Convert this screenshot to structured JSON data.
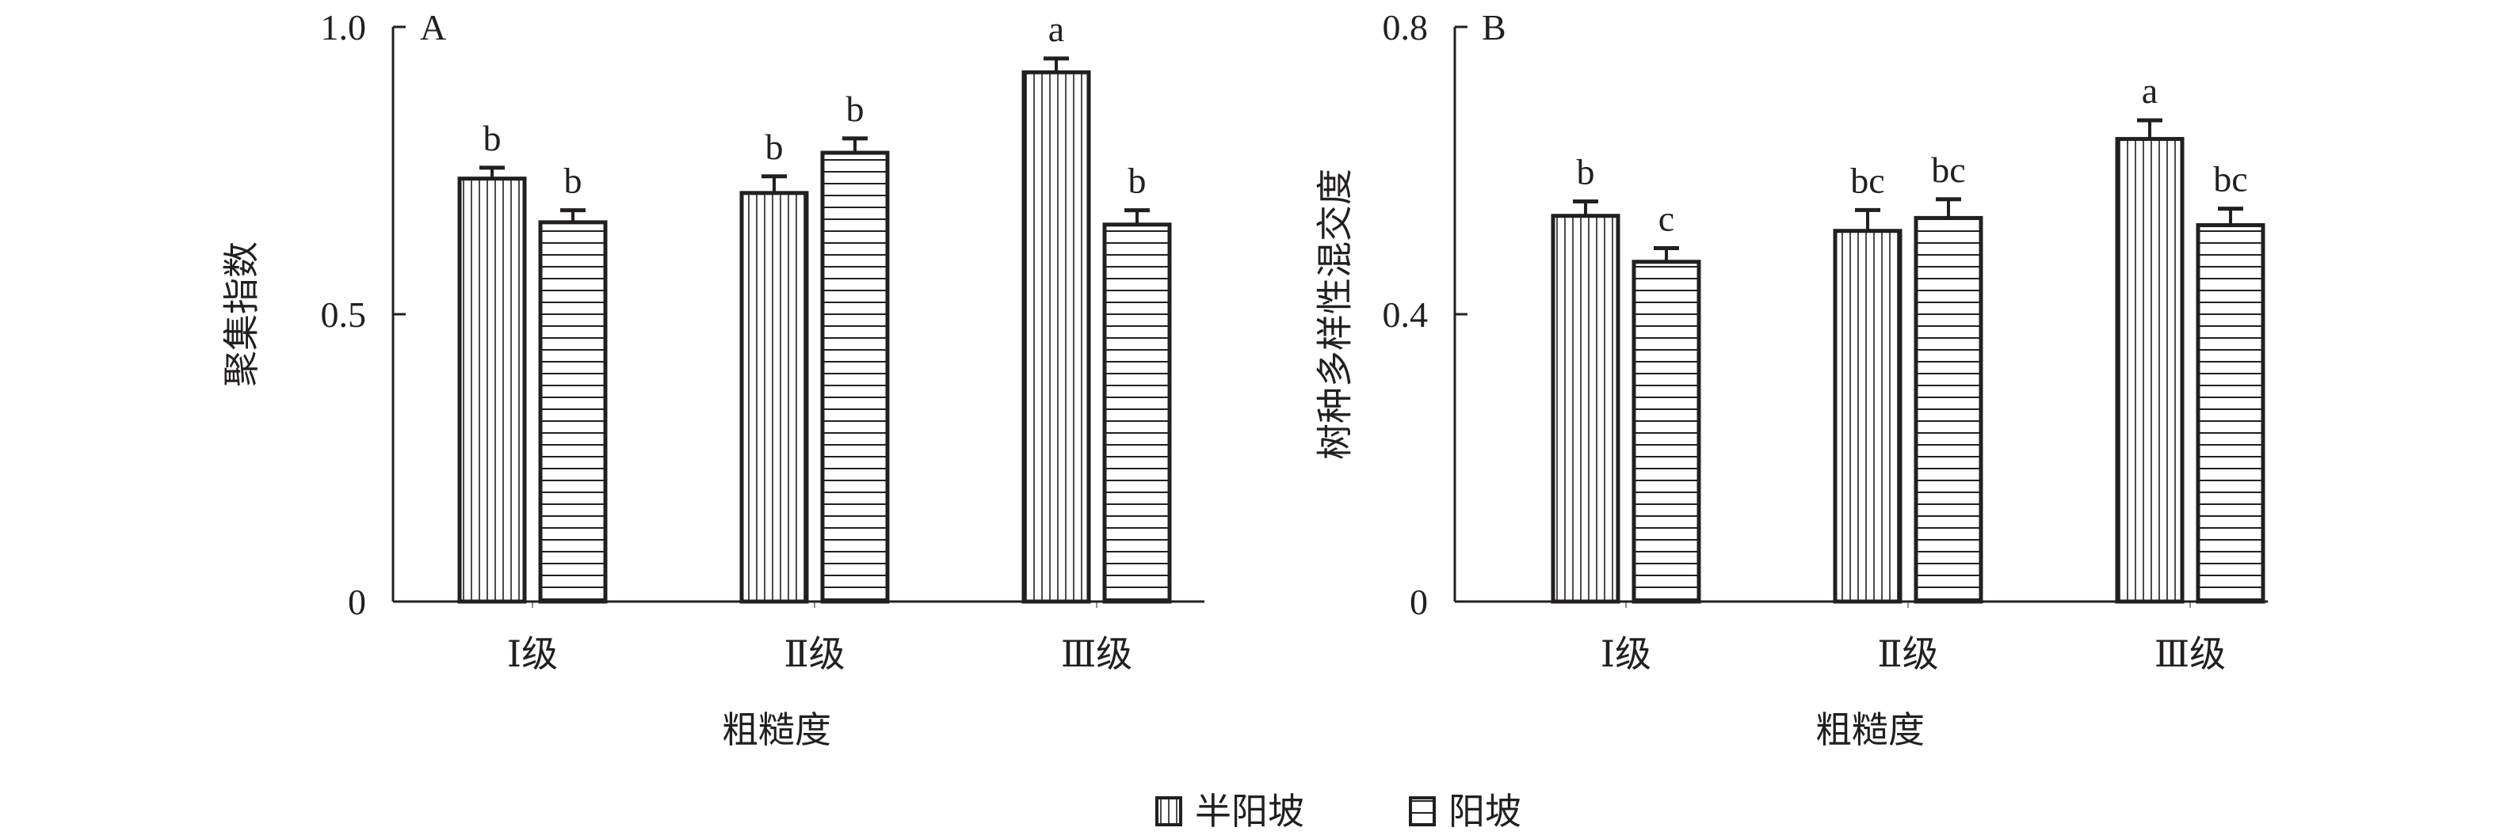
{
  "chart_data": [
    {
      "type": "bar",
      "panel_label": "A",
      "xlabel": "粗糙度",
      "ylabel": "聚集指数",
      "categories": [
        "Ⅰ级",
        "Ⅱ级",
        "Ⅲ级"
      ],
      "ylim": [
        0,
        1.0
      ],
      "yticks": [
        "0",
        "0.5",
        "1.0"
      ],
      "ytick_values": [
        0,
        0.5,
        1.0
      ],
      "series": [
        {
          "name": "半阳坡",
          "pattern": "vertical",
          "values": [
            0.736,
            0.711,
            0.921
          ],
          "error": [
            0.019,
            0.029,
            0.024
          ],
          "letters": [
            "b",
            "b",
            "a"
          ]
        },
        {
          "name": "阳坡",
          "pattern": "horizontal",
          "values": [
            0.66,
            0.781,
            0.656
          ],
          "error": [
            0.021,
            0.025,
            0.025
          ],
          "letters": [
            "b",
            "b",
            "b"
          ]
        }
      ]
    },
    {
      "type": "bar",
      "panel_label": "B",
      "xlabel": "粗糙度",
      "ylabel": "树种多样性混交度",
      "categories": [
        "Ⅰ级",
        "Ⅱ级",
        "Ⅲ级"
      ],
      "ylim": [
        0,
        0.8
      ],
      "yticks": [
        "0",
        "0.4",
        "0.8"
      ],
      "ytick_values": [
        0,
        0.4,
        0.8
      ],
      "series": [
        {
          "name": "半阳坡",
          "pattern": "vertical",
          "values": [
            0.537,
            0.516,
            0.644
          ],
          "error": [
            0.02,
            0.029,
            0.026
          ],
          "letters": [
            "b",
            "bc",
            "a"
          ]
        },
        {
          "name": "阳坡",
          "pattern": "horizontal",
          "values": [
            0.473,
            0.534,
            0.524
          ],
          "error": [
            0.019,
            0.026,
            0.023
          ],
          "letters": [
            "c",
            "bc",
            "bc"
          ]
        }
      ]
    }
  ],
  "legend": [
    {
      "label": "半阳坡",
      "pattern": "vertical"
    },
    {
      "label": "阳坡",
      "pattern": "horizontal"
    }
  ],
  "colors": {
    "ink": "#231f20",
    "background": "#ffffff"
  }
}
